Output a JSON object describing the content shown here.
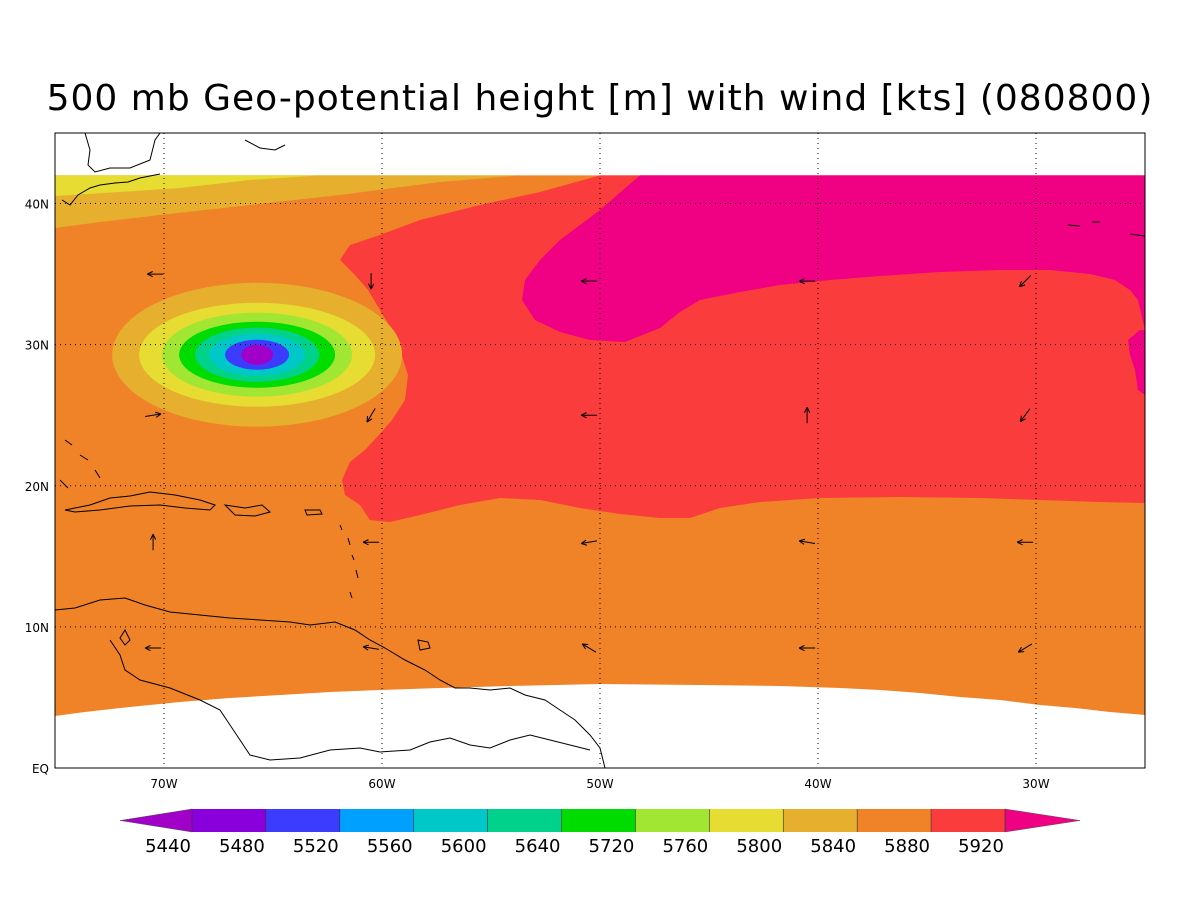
{
  "title": "500 mb Geo-potential height [m] with wind [kts] (080800)",
  "map": {
    "lon_range": [
      -75,
      -25
    ],
    "lat_range": [
      0,
      45
    ],
    "data_lat_range": [
      4,
      42
    ],
    "x_ticks": [
      {
        "lon": -70,
        "label": "70W"
      },
      {
        "lon": -60,
        "label": "60W"
      },
      {
        "lon": -50,
        "label": "50W"
      },
      {
        "lon": -40,
        "label": "40W"
      },
      {
        "lon": -30,
        "label": "30W"
      }
    ],
    "y_ticks": [
      {
        "lat": 0,
        "label": "EQ"
      },
      {
        "lat": 10,
        "label": "10N"
      },
      {
        "lat": 20,
        "label": "20N"
      },
      {
        "lat": 30,
        "label": "30N"
      },
      {
        "lat": 40,
        "label": "40N"
      }
    ],
    "grid": "dotted"
  },
  "colorbar": {
    "levels": [
      {
        "label": "5440",
        "color": "#8a00dc"
      },
      {
        "label": "5480",
        "color": "#3c3cff"
      },
      {
        "label": "5520",
        "color": "#00a0ff"
      },
      {
        "label": "5560",
        "color": "#00c8c8"
      },
      {
        "label": "5600",
        "color": "#00d28c"
      },
      {
        "label": "5640",
        "color": "#00dc00"
      },
      {
        "label": "5720",
        "color": "#a0e632"
      },
      {
        "label": "5760",
        "color": "#e6dc32"
      },
      {
        "label": "5800",
        "color": "#e6af2d"
      },
      {
        "label": "5840",
        "color": "#f08228"
      },
      {
        "label": "5880",
        "color": "#fa3c3c"
      },
      {
        "label": "5920",
        "color": "#f00082"
      }
    ],
    "below_color": "#a000c8",
    "above_color": "#f00082",
    "extend": "both"
  },
  "colors": {
    "c5920": "#f00082",
    "c5880": "#fa3c3c",
    "c5840": "#f08228",
    "c5800": "#e6af2d",
    "c5760": "#e6dc32",
    "c5720": "#a0e632",
    "c5640": "#00dc00",
    "c5600": "#00d28c",
    "c5560": "#00c8c8",
    "c5480": "#3c3cff",
    "low_center": "#a000c8"
  },
  "low_center": {
    "lon": -65.5,
    "lat": 29.5
  },
  "wind_vectors": [
    {
      "lon": -70.4,
      "lat": 35,
      "dx": 6,
      "dy": 0
    },
    {
      "lon": -60.5,
      "lat": 34.5,
      "dx": 0,
      "dy": 6
    },
    {
      "lon": -50.5,
      "lat": 34.5,
      "dx": 6,
      "dy": 0
    },
    {
      "lon": -40.5,
      "lat": 34.5,
      "dx": 6,
      "dy": 0
    },
    {
      "lon": -30.5,
      "lat": 34.5,
      "dx": 4,
      "dy": 4
    },
    {
      "lon": -70.5,
      "lat": 25,
      "dx": -6,
      "dy": -1
    },
    {
      "lon": -60.5,
      "lat": 25,
      "dx": 3,
      "dy": 5
    },
    {
      "lon": -50.5,
      "lat": 25,
      "dx": 6,
      "dy": 0
    },
    {
      "lon": -40.5,
      "lat": 25,
      "dx": 0,
      "dy": -6
    },
    {
      "lon": -30.5,
      "lat": 25,
      "dx": 3,
      "dy": 4
    },
    {
      "lon": -70.5,
      "lat": 16,
      "dx": 0,
      "dy": -6
    },
    {
      "lon": -60.5,
      "lat": 16,
      "dx": 6,
      "dy": 0
    },
    {
      "lon": -50.5,
      "lat": 16,
      "dx": 6,
      "dy": 1
    },
    {
      "lon": -40.5,
      "lat": 16,
      "dx": 6,
      "dy": -1
    },
    {
      "lon": -30.5,
      "lat": 16,
      "dx": 6,
      "dy": 0
    },
    {
      "lon": -70.5,
      "lat": 8.5,
      "dx": 6,
      "dy": 0
    },
    {
      "lon": -60.5,
      "lat": 8.5,
      "dx": 6,
      "dy": -1
    },
    {
      "lon": -50.5,
      "lat": 8.5,
      "dx": 5,
      "dy": -3
    },
    {
      "lon": -40.5,
      "lat": 8.5,
      "dx": 6,
      "dy": 0
    },
    {
      "lon": -30.5,
      "lat": 8.5,
      "dx": 5,
      "dy": 3
    }
  ]
}
